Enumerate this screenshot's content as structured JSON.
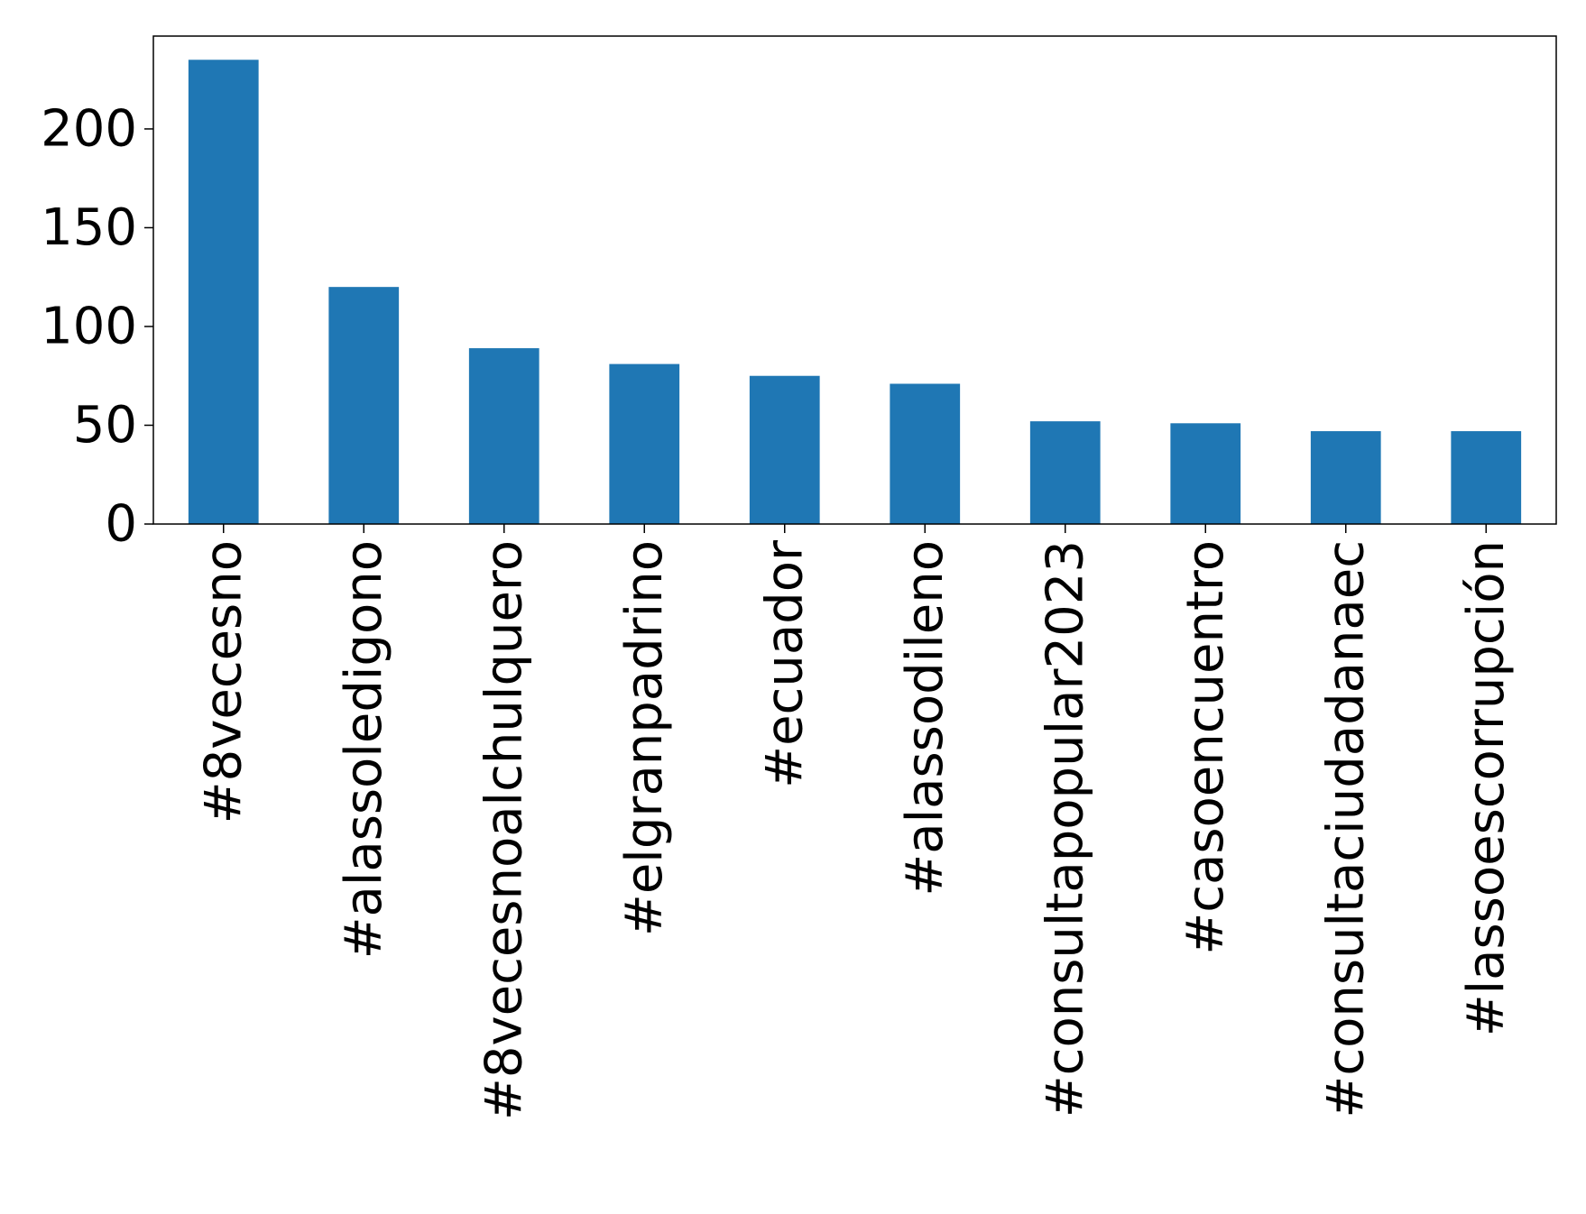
{
  "chart_data": {
    "type": "bar",
    "title": "",
    "xlabel": "",
    "ylabel": "",
    "categories": [
      "#8vecesno",
      "#alassoledigono",
      "#8vecesnoalchulquero",
      "#elgranpadrino",
      "#ecuador",
      "#alassodileno",
      "#consultapopular2023",
      "#casoencuentro",
      "#consultaciudadanaec",
      "#lassoescorrupción"
    ],
    "values": [
      235,
      120,
      89,
      81,
      75,
      71,
      52,
      51,
      47,
      47
    ],
    "ylim": [
      0,
      247
    ],
    "yticks": [
      0,
      50,
      100,
      150,
      200
    ],
    "ytick_labels": [
      "0",
      "50",
      "100",
      "150",
      "200"
    ],
    "grid": false,
    "legend": "none",
    "colors": {
      "bar": "#1f77b4",
      "axes": "#000000",
      "text": "#000000",
      "background": "#ffffff"
    }
  }
}
